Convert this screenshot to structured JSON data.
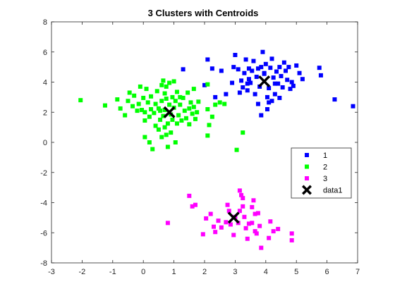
{
  "chart_data": {
    "type": "scatter",
    "title": "3 Clusters with Centroids",
    "xlabel": "",
    "ylabel": "",
    "xlim": [
      -3,
      7
    ],
    "ylim": [
      -8,
      8
    ],
    "xticks": [
      -3,
      -2,
      -1,
      0,
      1,
      2,
      3,
      4,
      5,
      6,
      7
    ],
    "yticks": [
      -8,
      -6,
      -4,
      -2,
      0,
      2,
      4,
      6,
      8
    ],
    "grid": false,
    "legend_position": "right",
    "series": [
      {
        "name": "1",
        "color": "#0000ff",
        "marker": "square",
        "points": [
          [
            1.3,
            4.85
          ],
          [
            2.1,
            5.5
          ],
          [
            2.25,
            4.9
          ],
          [
            2.0,
            3.8
          ],
          [
            2.35,
            3.0
          ],
          [
            2.7,
            3.2
          ],
          [
            2.55,
            4.75
          ],
          [
            2.9,
            3.95
          ],
          [
            2.95,
            5.0
          ],
          [
            3.0,
            5.8
          ],
          [
            3.1,
            4.85
          ],
          [
            3.15,
            3.3
          ],
          [
            3.2,
            4.1
          ],
          [
            3.25,
            3.65
          ],
          [
            3.3,
            4.6
          ],
          [
            3.35,
            5.5
          ],
          [
            3.4,
            3.45
          ],
          [
            3.45,
            4.2
          ],
          [
            3.5,
            3.95
          ],
          [
            3.55,
            4.75
          ],
          [
            3.6,
            5.4
          ],
          [
            3.65,
            3.2
          ],
          [
            3.7,
            4.35
          ],
          [
            3.75,
            4.9
          ],
          [
            3.8,
            3.7
          ],
          [
            3.85,
            5.0
          ],
          [
            3.9,
            6.0
          ],
          [
            3.95,
            4.55
          ],
          [
            4.0,
            5.2
          ],
          [
            4.05,
            3.0
          ],
          [
            4.1,
            3.6
          ],
          [
            4.15,
            4.95
          ],
          [
            4.2,
            5.55
          ],
          [
            4.25,
            4.3
          ],
          [
            4.3,
            3.2
          ],
          [
            4.35,
            4.7
          ],
          [
            4.4,
            3.9
          ],
          [
            4.45,
            5.0
          ],
          [
            4.5,
            4.4
          ],
          [
            4.55,
            3.65
          ],
          [
            4.6,
            5.3
          ],
          [
            4.65,
            4.75
          ],
          [
            4.7,
            4.15
          ],
          [
            4.75,
            5.0
          ],
          [
            4.8,
            3.55
          ],
          [
            4.85,
            4.0
          ],
          [
            4.9,
            3.75
          ],
          [
            5.0,
            5.1
          ],
          [
            5.1,
            4.6
          ],
          [
            5.2,
            4.2
          ],
          [
            5.75,
            4.95
          ],
          [
            5.8,
            4.45
          ],
          [
            6.25,
            2.85
          ],
          [
            6.85,
            2.4
          ],
          [
            3.75,
            2.55
          ],
          [
            3.85,
            1.8
          ],
          [
            4.05,
            2.2
          ],
          [
            4.2,
            2.75
          ],
          [
            4.1,
            2.65
          ],
          [
            4.45,
            2.95
          ],
          [
            3.45,
            4.9
          ],
          [
            3.95,
            4.6
          ],
          [
            3.4,
            3.9
          ],
          [
            4.3,
            3.9
          ]
        ]
      },
      {
        "name": "2",
        "color": "#00ff00",
        "marker": "square",
        "points": [
          [
            -2.05,
            2.8
          ],
          [
            -1.25,
            2.45
          ],
          [
            -0.85,
            2.85
          ],
          [
            -0.75,
            2.25
          ],
          [
            -0.6,
            1.8
          ],
          [
            -0.5,
            2.75
          ],
          [
            -0.45,
            3.3
          ],
          [
            -0.35,
            2.4
          ],
          [
            -0.3,
            3.1
          ],
          [
            -0.2,
            2.1
          ],
          [
            -0.15,
            2.55
          ],
          [
            -0.1,
            3.7
          ],
          [
            -0.05,
            2.15
          ],
          [
            0.0,
            2.95
          ],
          [
            0.05,
            2.0
          ],
          [
            0.05,
            1.45
          ],
          [
            0.05,
            0.35
          ],
          [
            0.1,
            3.55
          ],
          [
            0.15,
            2.65
          ],
          [
            0.2,
            1.7
          ],
          [
            0.2,
            0.0
          ],
          [
            0.25,
            2.2
          ],
          [
            0.25,
            3.05
          ],
          [
            0.3,
            -0.45
          ],
          [
            0.35,
            1.95
          ],
          [
            0.4,
            2.55
          ],
          [
            0.4,
            1.1
          ],
          [
            0.45,
            3.4
          ],
          [
            0.5,
            2.25
          ],
          [
            0.5,
            0.85
          ],
          [
            0.55,
            1.5
          ],
          [
            0.6,
            3.8
          ],
          [
            0.6,
            2.75
          ],
          [
            0.6,
            0.35
          ],
          [
            0.65,
            1.75
          ],
          [
            0.65,
            4.1
          ],
          [
            0.7,
            2.15
          ],
          [
            0.7,
            1.0
          ],
          [
            0.7,
            3.25
          ],
          [
            0.75,
            0.5
          ],
          [
            0.75,
            2.9
          ],
          [
            0.8,
            -0.3
          ],
          [
            0.8,
            1.25
          ],
          [
            0.85,
            3.95
          ],
          [
            0.85,
            2.5
          ],
          [
            0.9,
            1.85
          ],
          [
            0.9,
            0.65
          ],
          [
            0.95,
            3.0
          ],
          [
            0.95,
            1.5
          ],
          [
            1.0,
            2.3
          ],
          [
            1.0,
            4.05
          ],
          [
            1.05,
            0.0
          ],
          [
            1.05,
            2.75
          ],
          [
            1.1,
            1.25
          ],
          [
            1.1,
            3.35
          ],
          [
            1.15,
            1.8
          ],
          [
            1.2,
            2.5
          ],
          [
            1.25,
            1.45
          ],
          [
            1.3,
            2.95
          ],
          [
            1.35,
            2.1
          ],
          [
            1.4,
            1.6
          ],
          [
            1.45,
            3.3
          ],
          [
            1.5,
            2.25
          ],
          [
            1.5,
            1.2
          ],
          [
            1.55,
            2.65
          ],
          [
            1.6,
            1.9
          ],
          [
            1.65,
            3.55
          ],
          [
            1.65,
            2.35
          ],
          [
            1.7,
            1.55
          ],
          [
            1.75,
            2.0
          ],
          [
            1.8,
            2.7
          ],
          [
            2.1,
            3.85
          ],
          [
            2.1,
            2.2
          ],
          [
            2.15,
            1.15
          ],
          [
            2.25,
            1.7
          ],
          [
            2.35,
            2.5
          ],
          [
            2.5,
            2.65
          ],
          [
            2.65,
            2.55
          ],
          [
            2.1,
            0.45
          ],
          [
            3.05,
            -0.5
          ],
          [
            3.25,
            0.65
          ],
          [
            0.75,
            3.7
          ],
          [
            0.55,
            2.1
          ],
          [
            1.2,
            3.0
          ]
        ]
      },
      {
        "name": "3",
        "color": "#ff00ff",
        "marker": "square",
        "points": [
          [
            0.8,
            -5.35
          ],
          [
            1.5,
            -3.55
          ],
          [
            1.6,
            -4.25
          ],
          [
            1.7,
            -4.15
          ],
          [
            1.95,
            -6.1
          ],
          [
            2.05,
            -5.05
          ],
          [
            2.2,
            -4.75
          ],
          [
            2.3,
            -5.6
          ],
          [
            2.35,
            -5.95
          ],
          [
            2.45,
            -5.2
          ],
          [
            2.55,
            -5.65
          ],
          [
            2.7,
            -5.3
          ],
          [
            2.75,
            -4.15
          ],
          [
            2.8,
            -4.55
          ],
          [
            2.85,
            -5.45
          ],
          [
            2.95,
            -6.15
          ],
          [
            3.0,
            -4.95
          ],
          [
            3.1,
            -5.35
          ],
          [
            3.15,
            -3.2
          ],
          [
            3.15,
            -4.55
          ],
          [
            3.2,
            -3.5
          ],
          [
            3.25,
            -4.25
          ],
          [
            3.3,
            -4.95
          ],
          [
            3.35,
            -5.7
          ],
          [
            3.4,
            -6.4
          ],
          [
            3.45,
            -5.4
          ],
          [
            3.55,
            -4.3
          ],
          [
            3.55,
            -5.35
          ],
          [
            3.6,
            -3.85
          ],
          [
            3.65,
            -4.75
          ],
          [
            3.65,
            -5.9
          ],
          [
            3.7,
            -6.05
          ],
          [
            3.75,
            -4.7
          ],
          [
            3.8,
            -5.55
          ],
          [
            3.85,
            -7.0
          ],
          [
            4.1,
            -6.35
          ],
          [
            4.15,
            -5.25
          ],
          [
            4.25,
            -5.9
          ],
          [
            4.4,
            -5.75
          ],
          [
            4.85,
            -6.05
          ],
          [
            4.85,
            -6.5
          ],
          [
            3.25,
            -3.7
          ]
        ]
      },
      {
        "name": "data1",
        "color": "#000000",
        "marker": "x",
        "points": [
          [
            0.85,
            2.0
          ],
          [
            3.95,
            4.05
          ],
          [
            2.95,
            -5.0
          ]
        ]
      }
    ]
  }
}
